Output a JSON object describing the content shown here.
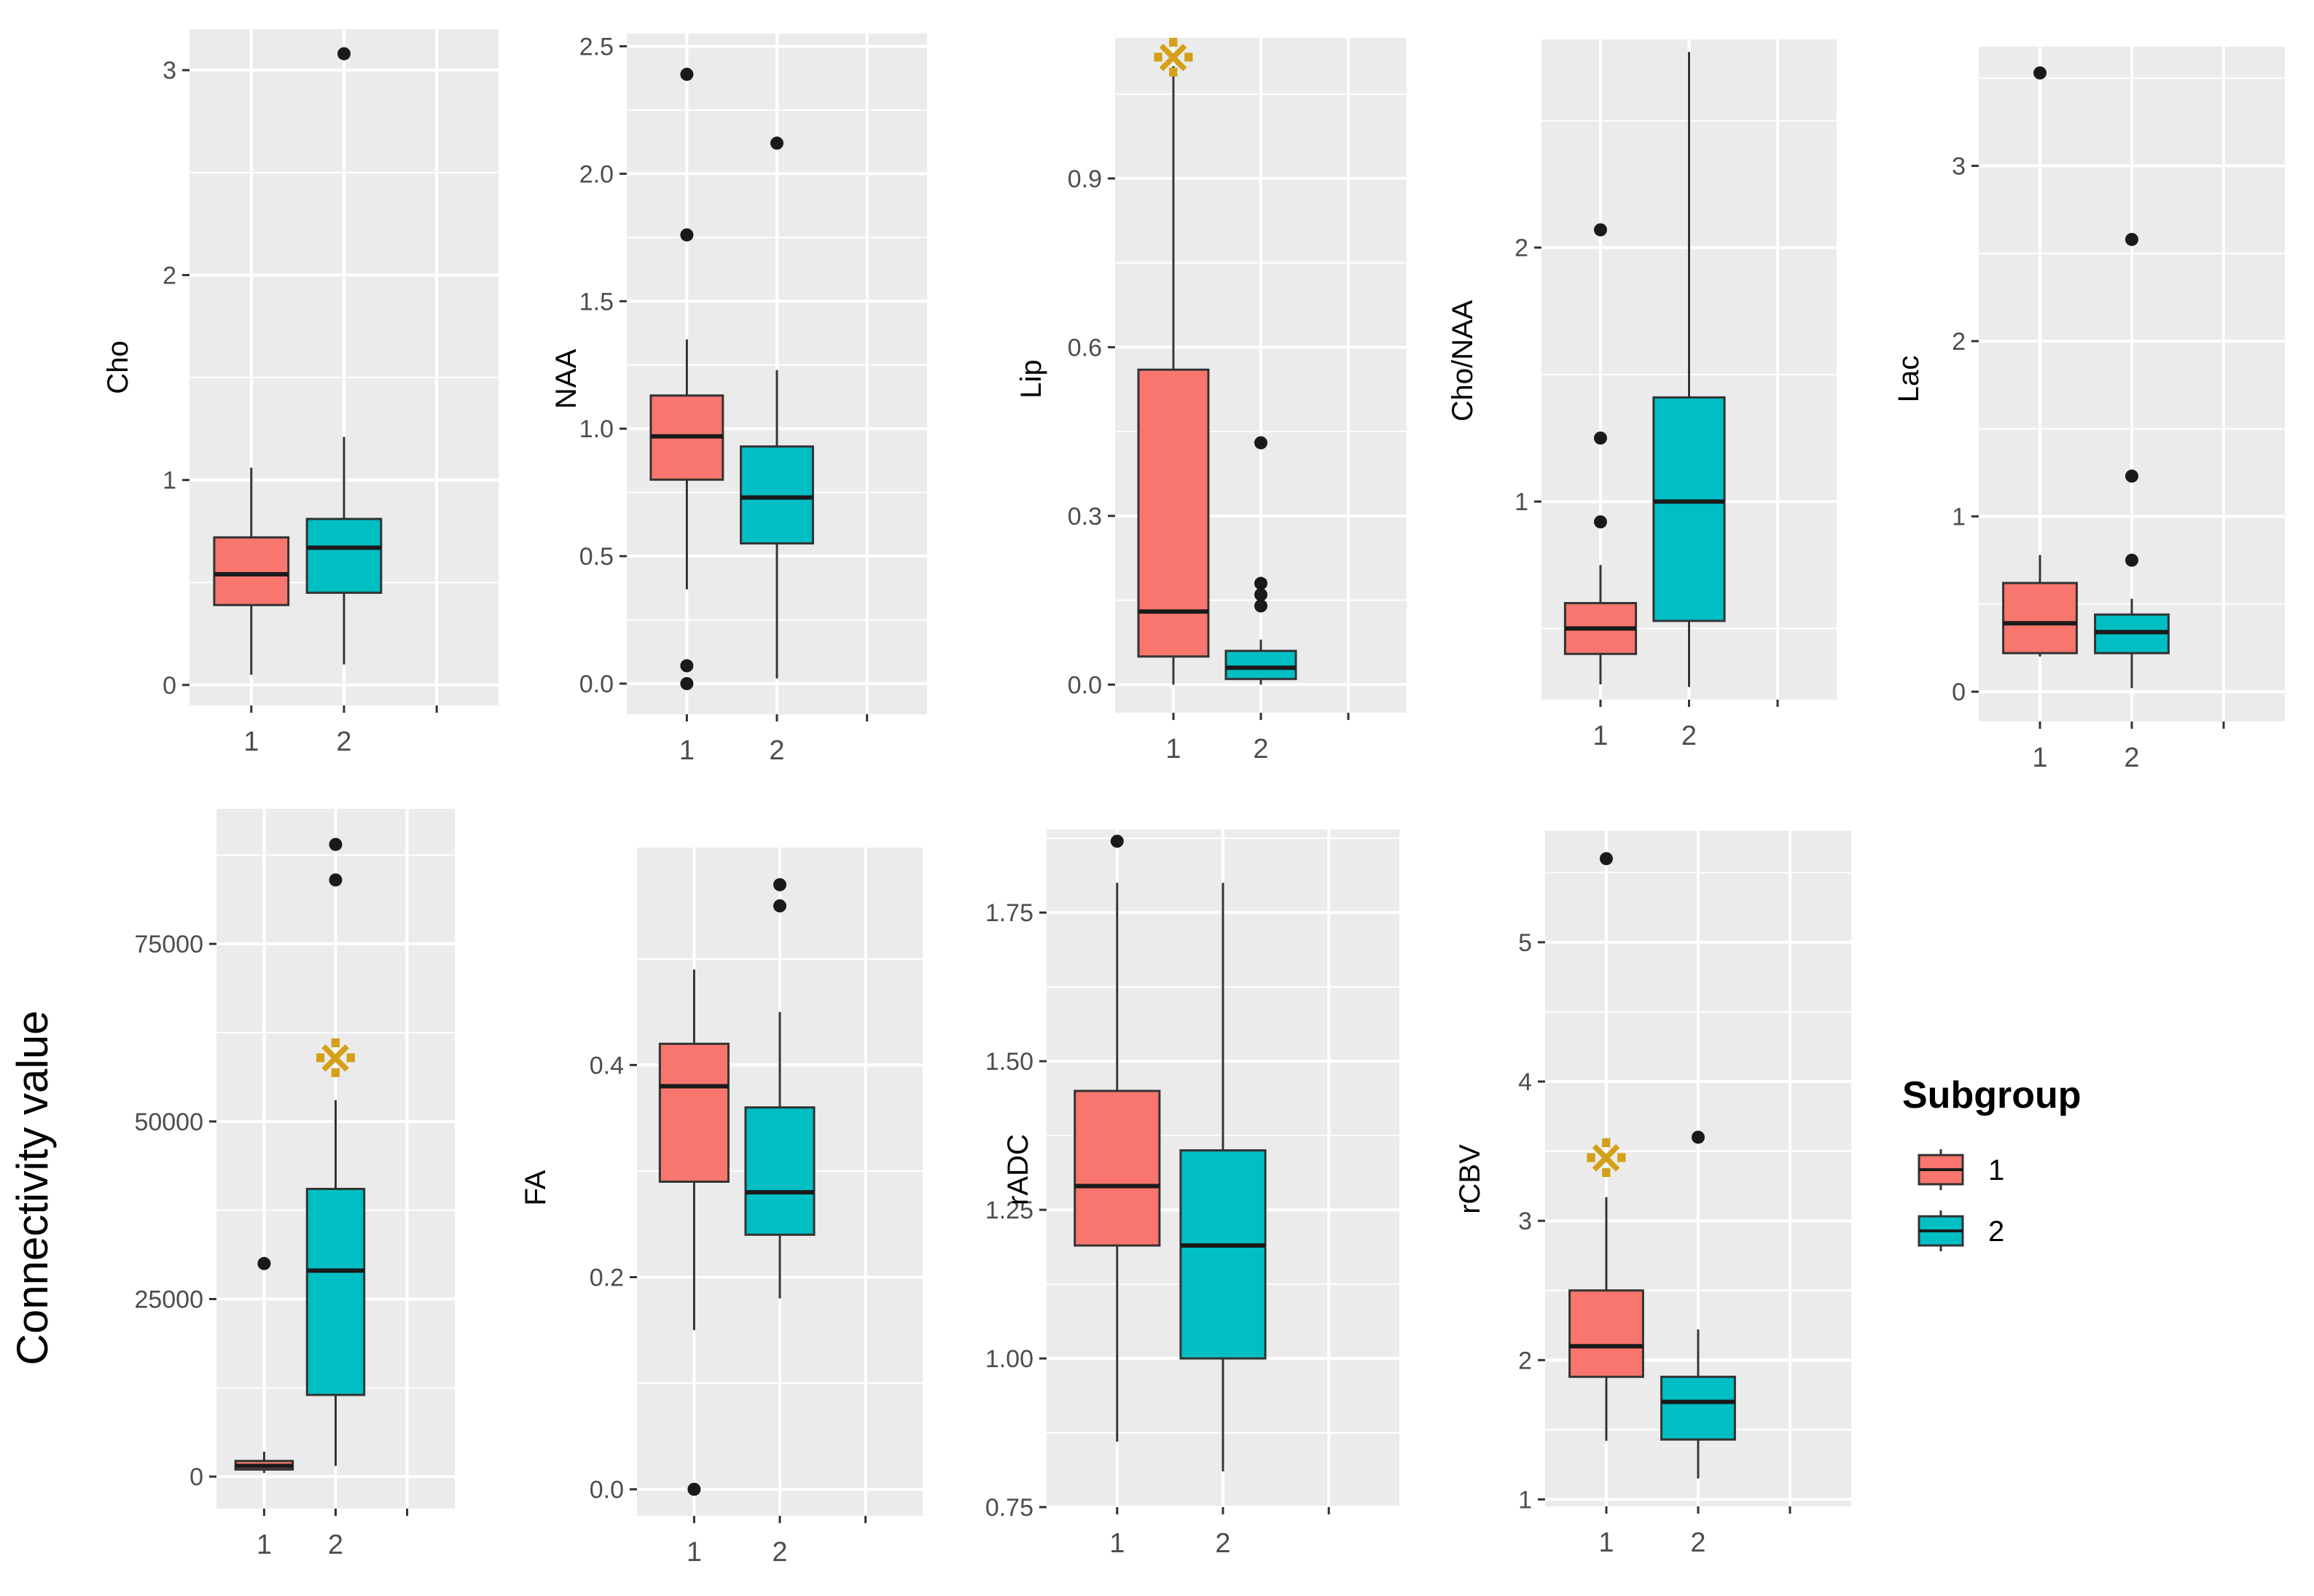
{
  "chart_data": [
    {
      "type": "boxplot",
      "ylabel": "Cho",
      "categories": [
        "1",
        "2"
      ],
      "yticks": [
        0,
        1,
        2,
        3
      ],
      "ytick_labels": [
        "0",
        "1",
        "2",
        "3"
      ],
      "ylim": [
        -0.1,
        3.2
      ],
      "boxes": [
        {
          "group": "1",
          "whisker_low": 0.05,
          "q1": 0.39,
          "median": 0.54,
          "q3": 0.72,
          "whisker_high": 1.06,
          "outliers": []
        },
        {
          "group": "2",
          "whisker_low": 0.1,
          "q1": 0.45,
          "median": 0.67,
          "q3": 0.81,
          "whisker_high": 1.21,
          "outliers": [
            3.08
          ]
        }
      ],
      "annotation": null
    },
    {
      "type": "boxplot",
      "ylabel": "NAA",
      "categories": [
        "1",
        "2"
      ],
      "yticks": [
        0.0,
        0.5,
        1.0,
        1.5,
        2.0,
        2.5
      ],
      "ytick_labels": [
        "0.0",
        "0.5",
        "1.0",
        "1.5",
        "2.0",
        "2.5"
      ],
      "ylim": [
        -0.12,
        2.55
      ],
      "boxes": [
        {
          "group": "1",
          "whisker_low": 0.37,
          "q1": 0.8,
          "median": 0.97,
          "q3": 1.13,
          "whisker_high": 1.35,
          "outliers": [
            0.0,
            0.07,
            1.76,
            2.39
          ]
        },
        {
          "group": "2",
          "whisker_low": 0.02,
          "q1": 0.55,
          "median": 0.73,
          "q3": 0.93,
          "whisker_high": 1.23,
          "outliers": [
            2.12
          ]
        }
      ],
      "annotation": null
    },
    {
      "type": "boxplot",
      "ylabel": "Lip",
      "categories": [
        "1",
        "2"
      ],
      "yticks": [
        0.0,
        0.3,
        0.6,
        0.9
      ],
      "ytick_labels": [
        "0.0",
        "0.3",
        "0.6",
        "0.9"
      ],
      "ylim": [
        -0.05,
        1.15
      ],
      "boxes": [
        {
          "group": "1",
          "whisker_low": 0.0,
          "q1": 0.05,
          "median": 0.13,
          "q3": 0.56,
          "whisker_high": 1.1,
          "outliers": []
        },
        {
          "group": "2",
          "whisker_low": 0.0,
          "q1": 0.01,
          "median": 0.03,
          "q3": 0.06,
          "whisker_high": 0.08,
          "outliers": [
            0.14,
            0.16,
            0.18,
            0.43
          ]
        }
      ],
      "annotation": {
        "group": "1",
        "value": 1.11,
        "symbol": "※"
      }
    },
    {
      "type": "boxplot",
      "ylabel": "Cho/NAA",
      "categories": [
        "1",
        "2"
      ],
      "yticks": [
        1,
        2
      ],
      "ytick_labels": [
        "1",
        "2"
      ],
      "ylim": [
        0.22,
        2.82
      ],
      "boxes": [
        {
          "group": "1",
          "whisker_low": 0.28,
          "q1": 0.4,
          "median": 0.5,
          "q3": 0.6,
          "whisker_high": 0.75,
          "outliers": [
            0.92,
            1.25,
            2.07
          ]
        },
        {
          "group": "2",
          "whisker_low": 0.27,
          "q1": 0.53,
          "median": 1.0,
          "q3": 1.41,
          "whisker_high": 2.77,
          "outliers": []
        }
      ],
      "annotation": null
    },
    {
      "type": "boxplot",
      "ylabel": "Lac",
      "categories": [
        "1",
        "2"
      ],
      "yticks": [
        0,
        1,
        2,
        3
      ],
      "ytick_labels": [
        "0",
        "1",
        "2",
        "3"
      ],
      "ylim": [
        -0.17,
        3.68
      ],
      "boxes": [
        {
          "group": "1",
          "whisker_low": 0.2,
          "q1": 0.22,
          "median": 0.39,
          "q3": 0.62,
          "whisker_high": 0.78,
          "outliers": [
            3.53
          ]
        },
        {
          "group": "2",
          "whisker_low": 0.02,
          "q1": 0.22,
          "median": 0.34,
          "q3": 0.44,
          "whisker_high": 0.53,
          "outliers": [
            0.75,
            1.23,
            2.58
          ]
        }
      ],
      "annotation": null
    },
    {
      "type": "boxplot",
      "ylabel": "Connectivity value",
      "categories": [
        "1",
        "2"
      ],
      "yticks": [
        0,
        25000,
        50000,
        75000
      ],
      "ytick_labels": [
        "0",
        "25000",
        "50000",
        "75000"
      ],
      "ylim": [
        -4500,
        94000
      ],
      "boxes": [
        {
          "group": "1",
          "whisker_low": 500,
          "q1": 1000,
          "median": 1500,
          "q3": 2200,
          "whisker_high": 3500,
          "outliers": [
            30000
          ]
        },
        {
          "group": "2",
          "whisker_low": 1500,
          "q1": 11500,
          "median": 29000,
          "q3": 40500,
          "whisker_high": 53000,
          "outliers": [
            84000,
            89000
          ]
        }
      ],
      "annotation": {
        "group": "2",
        "value": 58500,
        "symbol": "※"
      }
    },
    {
      "type": "boxplot",
      "ylabel": "FA",
      "categories": [
        "1",
        "2"
      ],
      "yticks": [
        0.0,
        0.2,
        0.4
      ],
      "ytick_labels": [
        "0.0",
        "0.2",
        "0.4"
      ],
      "ylim": [
        -0.025,
        0.605
      ],
      "boxes": [
        {
          "group": "1",
          "whisker_low": 0.15,
          "q1": 0.29,
          "median": 0.38,
          "q3": 0.42,
          "whisker_high": 0.49,
          "outliers": [
            0.0
          ]
        },
        {
          "group": "2",
          "whisker_low": 0.18,
          "q1": 0.24,
          "median": 0.28,
          "q3": 0.36,
          "whisker_high": 0.45,
          "outliers": [
            0.55,
            0.57
          ]
        }
      ],
      "annotation": null
    },
    {
      "type": "boxplot",
      "ylabel": "rADC",
      "categories": [
        "1",
        "2"
      ],
      "yticks": [
        0.75,
        1.0,
        1.25,
        1.5,
        1.75
      ],
      "ytick_labels": [
        "0.75",
        "1.00",
        "1.25",
        "1.50",
        "1.75"
      ],
      "ylim": [
        0.75,
        1.89
      ],
      "boxes": [
        {
          "group": "1",
          "whisker_low": 0.86,
          "q1": 1.19,
          "median": 1.29,
          "q3": 1.45,
          "whisker_high": 1.8,
          "outliers": [
            1.87
          ]
        },
        {
          "group": "2",
          "whisker_low": 0.81,
          "q1": 1.0,
          "median": 1.19,
          "q3": 1.35,
          "whisker_high": 1.8,
          "outliers": []
        }
      ],
      "annotation": null
    },
    {
      "type": "boxplot",
      "ylabel": "rCBV",
      "categories": [
        "1",
        "2"
      ],
      "yticks": [
        1,
        2,
        3,
        4,
        5
      ],
      "ytick_labels": [
        "1",
        "2",
        "3",
        "4",
        "5"
      ],
      "ylim": [
        0.95,
        5.8
      ],
      "boxes": [
        {
          "group": "1",
          "whisker_low": 1.42,
          "q1": 1.88,
          "median": 2.1,
          "q3": 2.5,
          "whisker_high": 3.17,
          "outliers": [
            5.6
          ]
        },
        {
          "group": "2",
          "whisker_low": 1.15,
          "q1": 1.43,
          "median": 1.7,
          "q3": 1.88,
          "whisker_high": 2.22,
          "outliers": [
            3.6
          ]
        }
      ],
      "annotation": {
        "group": "1",
        "value": 3.43,
        "symbol": "※"
      }
    }
  ],
  "legend": {
    "title": "Subgroup",
    "items": [
      {
        "label": "1",
        "color": "#F8766D"
      },
      {
        "label": "2",
        "color": "#00BFC4"
      }
    ]
  },
  "colors": {
    "panel": "#EBEBEB",
    "grid": "#FFFFFF",
    "group1": "#F8766D",
    "group2": "#00BFC4",
    "outlier": "#1A1A1A",
    "annotation": "#D4A017"
  }
}
